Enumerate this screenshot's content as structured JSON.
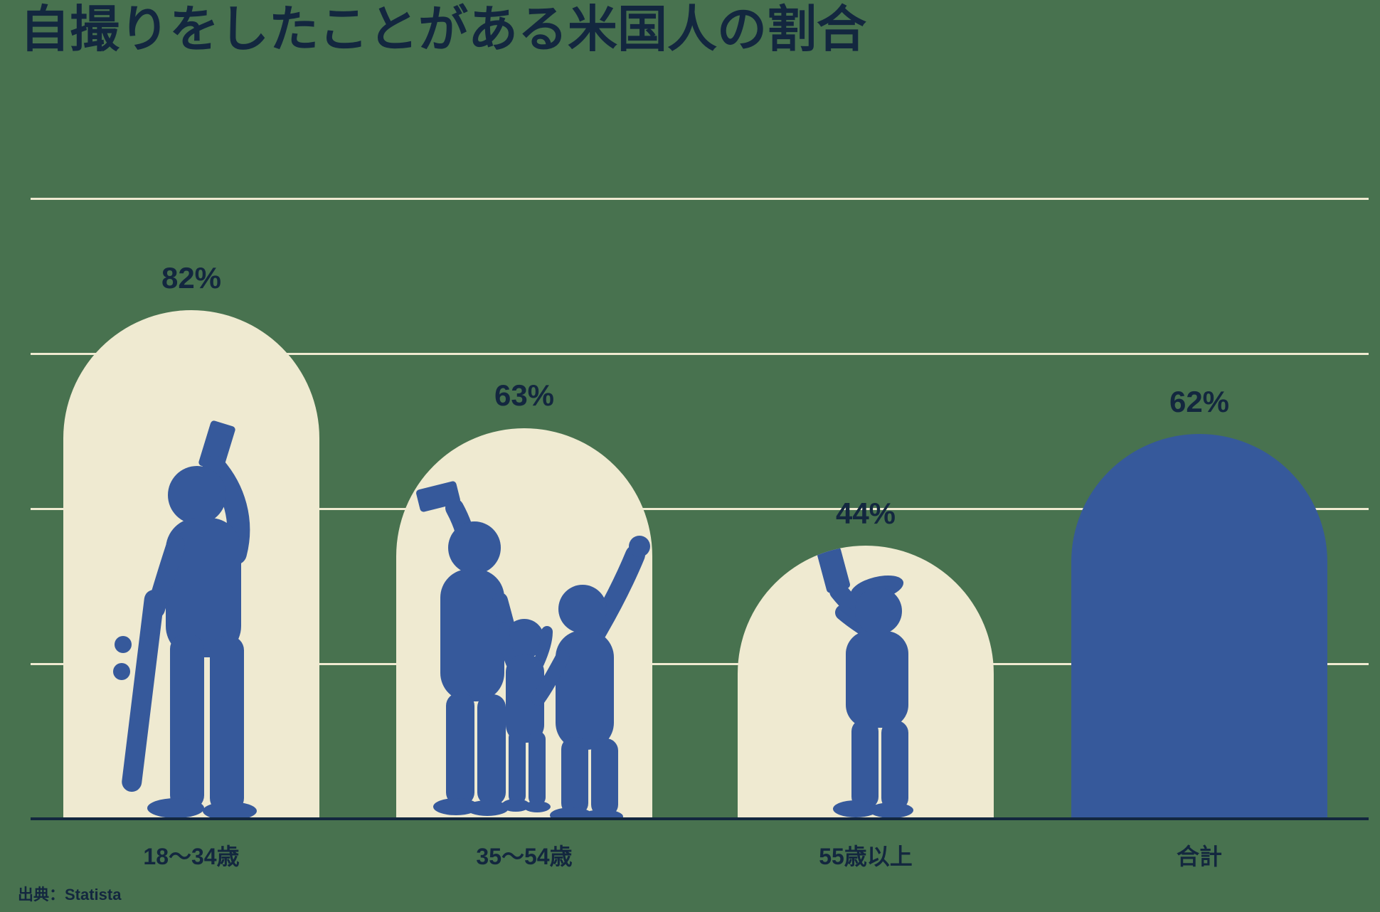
{
  "title": "自撮りをしたことがある米国人の割合",
  "source": "出典：Statista",
  "colors": {
    "background": "#48724F",
    "cream": "#EFEAD1",
    "blue": "#36599B",
    "navy": "#13273F"
  },
  "chart_data": {
    "type": "bar",
    "title": "自撮りをしたことがある米国人の割合",
    "categories": [
      "18〜34歳",
      "35〜54歳",
      "55歳以上",
      "合計"
    ],
    "values": [
      82,
      63,
      44,
      62
    ],
    "value_labels": [
      "82%",
      "63%",
      "44%",
      "62%"
    ],
    "unit": "%",
    "ylim": [
      0,
      100
    ],
    "gridline_values": [
      25,
      50,
      75,
      100
    ],
    "grid": "horizontal",
    "legend": "none",
    "bar_shape": "rounded-arch",
    "bar_fill": [
      "cream",
      "cream",
      "cream",
      "blue"
    ],
    "silhouette_icons": [
      "young-man-selfie-with-skateboard",
      "family-of-three-selfie",
      "older-man-flat-cap-selfie",
      "none"
    ],
    "source": "出典：Statista"
  }
}
